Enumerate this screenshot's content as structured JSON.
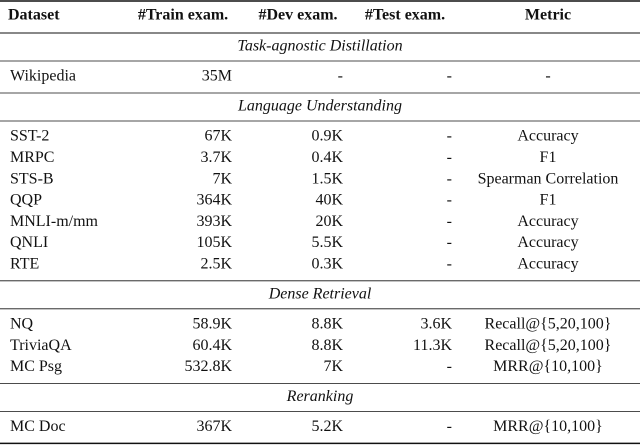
{
  "table": {
    "header": [
      "Dataset",
      "#Train exam.",
      "#Dev exam.",
      "#Test exam.",
      "Metric"
    ],
    "sections": [
      {
        "title": "Task-agnostic Distillation",
        "rows": [
          [
            "Wikipedia",
            "35M",
            "-",
            "-",
            "-"
          ]
        ]
      },
      {
        "title": "Language Understanding",
        "rows": [
          [
            "SST-2",
            "67K",
            "0.9K",
            "-",
            "Accuracy"
          ],
          [
            "MRPC",
            "3.7K",
            "0.4K",
            "-",
            "F1"
          ],
          [
            "STS-B",
            "7K",
            "1.5K",
            "-",
            "Spearman Correlation"
          ],
          [
            "QQP",
            "364K",
            "40K",
            "-",
            "F1"
          ],
          [
            "MNLI-m/mm",
            "393K",
            "20K",
            "-",
            "Accuracy"
          ],
          [
            "QNLI",
            "105K",
            "5.5K",
            "-",
            "Accuracy"
          ],
          [
            "RTE",
            "2.5K",
            "0.3K",
            "-",
            "Accuracy"
          ]
        ]
      },
      {
        "title": "Dense Retrieval",
        "rows": [
          [
            "NQ",
            "58.9K",
            "8.8K",
            "3.6K",
            "Recall@{5,20,100}"
          ],
          [
            "TriviaQA",
            "60.4K",
            "8.8K",
            "11.3K",
            "Recall@{5,20,100}"
          ],
          [
            "MC Psg",
            "532.8K",
            "7K",
            "-",
            "MRR@{10,100}"
          ]
        ]
      },
      {
        "title": "Reranking",
        "rows": [
          [
            "MC Doc",
            "367K",
            "5.2K",
            "-",
            "MRR@{10,100}"
          ]
        ]
      }
    ]
  }
}
